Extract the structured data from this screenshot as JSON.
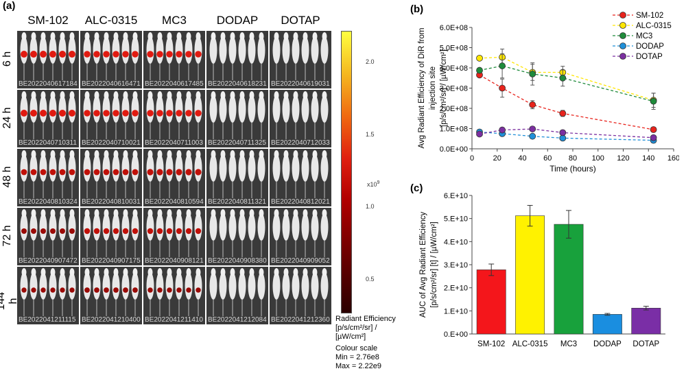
{
  "panel_a": {
    "label": "(a)",
    "formulations": [
      "SM-102",
      "ALC-0315",
      "MC3",
      "DODAP",
      "DOTAP"
    ],
    "timepoints": [
      "6 h",
      "24 h",
      "48 h",
      "72 h",
      "144 h"
    ],
    "image_ids": [
      [
        "BE20220406171​84",
        "BE20220406164​71",
        "BE20220406174​85",
        "BE20220406182​31",
        "BE20220406190​31"
      ],
      [
        "BE20220407103​11",
        "BE20220407100​21",
        "BE20220407110​03",
        "BE20220407113​25",
        "BE20220407120​33"
      ],
      [
        "BE20220408103​24",
        "BE20220408100​31",
        "BE20220408105​94",
        "BE20220408113​21",
        "BE20220408120​21"
      ],
      [
        "BE20220409074​72",
        "BE20220409071​75",
        "BE20220409081​21",
        "BE20220409083​80",
        "BE20220409090​52"
      ],
      [
        "BE20220412111​15",
        "BE20220412104​00",
        "BE20220412114​10",
        "BE20220412120​84",
        "BE20220412123​60"
      ]
    ],
    "signal": [
      [
        1.0,
        0.9,
        0.9,
        0,
        0
      ],
      [
        1.0,
        0.9,
        0.9,
        0,
        0
      ],
      [
        0.7,
        0.7,
        0.8,
        0,
        0
      ],
      [
        0.5,
        0.6,
        0.6,
        0,
        0
      ],
      [
        0.35,
        0.45,
        0.4,
        0,
        0
      ]
    ],
    "colorbar": {
      "ticks": [
        "2.0",
        "1.5",
        "1.0",
        "0.5"
      ],
      "multiplier": "x10",
      "multiplier_exp": "9",
      "title": "Radiant Efficiency",
      "units_line1": "[p/s/cm²/sr] /",
      "units_line2": "[µW/cm²]",
      "scale_title": "Colour scale",
      "min_text": "Min = 2.76e8",
      "max_text": "Max = 2.22e9"
    }
  },
  "chart_data": [
    {
      "type": "line",
      "panel_label": "(b)",
      "x": [
        6,
        24,
        48,
        72,
        144
      ],
      "series": [
        {
          "name": "SM-102",
          "color": "#e8231c",
          "values": [
            365000000.0,
            300000000.0,
            218000000.0,
            175000000.0,
            95000000.0
          ],
          "errors": [
            12000000.0,
            45000000.0,
            20000000.0,
            15000000.0,
            10000000.0
          ]
        },
        {
          "name": "ALC-0315",
          "color": "#ffe600",
          "values": [
            448000000.0,
            453000000.0,
            378000000.0,
            378000000.0,
            240000000.0
          ],
          "errors": [
            5000000.0,
            40000000.0,
            40000000.0,
            30000000.0,
            35000000.0
          ]
        },
        {
          "name": "MC3",
          "color": "#1f8b3b",
          "values": [
            388000000.0,
            410000000.0,
            370000000.0,
            350000000.0,
            235000000.0
          ],
          "errors": [
            10000000.0,
            60000000.0,
            55000000.0,
            40000000.0,
            40000000.0
          ]
        },
        {
          "name": "DODAP",
          "color": "#1f8fd8",
          "values": [
            83000000.0,
            75000000.0,
            62000000.0,
            53000000.0,
            42000000.0
          ],
          "errors": [
            3000000.0,
            4000000.0,
            3000000.0,
            3000000.0,
            3000000.0
          ]
        },
        {
          "name": "DOTAP",
          "color": "#7b2fa0",
          "values": [
            73000000.0,
            93000000.0,
            98000000.0,
            80000000.0,
            55000000.0
          ],
          "errors": [
            5000000.0,
            5000000.0,
            5000000.0,
            4000000.0,
            4000000.0
          ]
        }
      ],
      "xlabel": "Time (hours)",
      "ylabel_lines": [
        "Avg Radiant Efficiency of DiR from",
        "injection site",
        "[p/s/cm²/sr] / [µW/cm²]"
      ],
      "xlim": [
        0,
        150
      ],
      "ylim": [
        0,
        600000000.0
      ],
      "xticks": [
        "0",
        "20",
        "40",
        "60",
        "80",
        "100",
        "120",
        "140",
        "160"
      ],
      "yticks": [
        "0.0E+00",
        "1.0E+08",
        "2.0E+08",
        "3.0E+08",
        "4.0E+08",
        "5.0E+08",
        "6.0E+08"
      ],
      "legend_position": "top-right",
      "grid": false
    },
    {
      "type": "bar",
      "panel_label": "(c)",
      "categories": [
        "SM-102",
        "ALC-0315",
        "MC3",
        "DODAP",
        "DOTAP"
      ],
      "values": [
        27800000000.0,
        51200000000.0,
        47500000000.0,
        8500000000.0,
        11200000000.0
      ],
      "errors": [
        2500000000.0,
        4500000000.0,
        6000000000.0,
        400000000.0,
        800000000.0
      ],
      "colors": [
        "#f4161b",
        "#fff200",
        "#18a13c",
        "#1a8ee0",
        "#7a2ea6"
      ],
      "ylabel_lines": [
        "AUC of Avg Radiant Efficiency",
        "[p/s/cm²/sr] [t] / [µW/cm²]"
      ],
      "ylim": [
        0,
        60000000000.0
      ],
      "yticks": [
        "0.E+00",
        "1.E+10",
        "2.E+10",
        "3.E+10",
        "4.E+10",
        "5.E+10",
        "6.E+10"
      ],
      "grid": false
    }
  ]
}
